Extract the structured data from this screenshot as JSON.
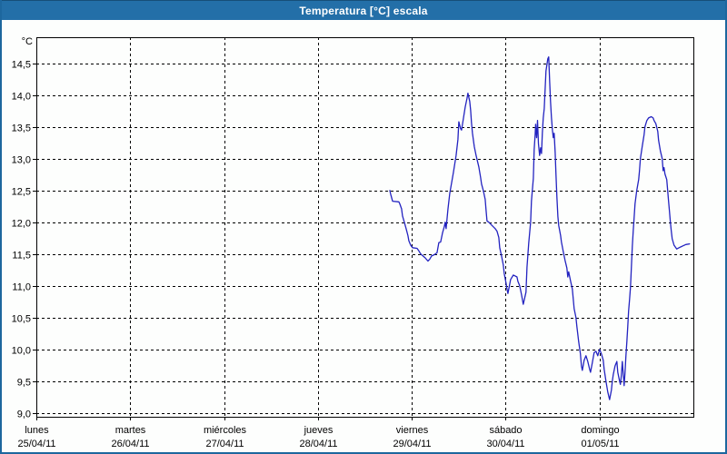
{
  "window": {
    "title": "Temperatura [°C] escala"
  },
  "colors": {
    "titlebar_bg": "#236fa8",
    "window_border": "#1d679e",
    "background": "#fdfefd",
    "line": "#2323c0",
    "grid": "#000000",
    "plot_border": "#000000"
  },
  "chart_data": {
    "type": "line",
    "title": "Temperatura [°C] escala",
    "y_unit_label": "°C",
    "grid": "dashed",
    "legend": "none",
    "ylim": [
      8.94,
      14.91
    ],
    "xlim_days": [
      0,
      7
    ],
    "y_ticks": [
      {
        "v": 14.5,
        "label": "14,5"
      },
      {
        "v": 14.0,
        "label": "14,0"
      },
      {
        "v": 13.5,
        "label": "13,5"
      },
      {
        "v": 13.0,
        "label": "13,0"
      },
      {
        "v": 12.5,
        "label": "12,5"
      },
      {
        "v": 12.0,
        "label": "12,0"
      },
      {
        "v": 11.5,
        "label": "11,5"
      },
      {
        "v": 11.0,
        "label": "11,0"
      },
      {
        "v": 10.5,
        "label": "10,5"
      },
      {
        "v": 10.0,
        "label": "10,0"
      },
      {
        "v": 9.5,
        "label": "9,5"
      },
      {
        "v": 9.0,
        "label": "9,0"
      }
    ],
    "x_ticks": [
      {
        "t": 0,
        "day": "lunes",
        "date": "25/04/11"
      },
      {
        "t": 1,
        "day": "martes",
        "date": "26/04/11"
      },
      {
        "t": 2,
        "day": "miércoles",
        "date": "27/04/11"
      },
      {
        "t": 3,
        "day": "jueves",
        "date": "28/04/11"
      },
      {
        "t": 4,
        "day": "viernes",
        "date": "29/04/11"
      },
      {
        "t": 5,
        "day": "sábado",
        "date": "30/04/11"
      },
      {
        "t": 6,
        "day": "domingo",
        "date": "01/05/11"
      }
    ],
    "series": [
      {
        "name": "Temperatura",
        "color": "#2323c0",
        "points": [
          [
            3.766,
            12.5
          ],
          [
            3.775,
            12.44
          ],
          [
            3.795,
            12.33
          ],
          [
            3.862,
            12.32
          ],
          [
            3.872,
            12.29
          ],
          [
            3.891,
            12.21
          ],
          [
            3.901,
            12.1
          ],
          [
            3.92,
            12.0
          ],
          [
            3.94,
            11.9
          ],
          [
            3.959,
            11.79
          ],
          [
            3.969,
            11.71
          ],
          [
            3.988,
            11.64
          ],
          [
            4.008,
            11.6
          ],
          [
            4.056,
            11.59
          ],
          [
            4.075,
            11.55
          ],
          [
            4.095,
            11.5
          ],
          [
            4.143,
            11.44
          ],
          [
            4.172,
            11.39
          ],
          [
            4.191,
            11.42
          ],
          [
            4.211,
            11.47
          ],
          [
            4.24,
            11.49
          ],
          [
            4.269,
            11.52
          ],
          [
            4.288,
            11.68
          ],
          [
            4.307,
            11.69
          ],
          [
            4.327,
            11.83
          ],
          [
            4.346,
            11.93
          ],
          [
            4.356,
            12.0
          ],
          [
            4.366,
            11.9
          ],
          [
            4.385,
            12.2
          ],
          [
            4.404,
            12.45
          ],
          [
            4.443,
            12.78
          ],
          [
            4.472,
            13.05
          ],
          [
            4.491,
            13.3
          ],
          [
            4.501,
            13.58
          ],
          [
            4.52,
            13.47
          ],
          [
            4.53,
            13.45
          ],
          [
            4.549,
            13.62
          ],
          [
            4.569,
            13.81
          ],
          [
            4.588,
            13.95
          ],
          [
            4.598,
            14.03
          ],
          [
            4.617,
            13.9
          ],
          [
            4.627,
            13.76
          ],
          [
            4.636,
            13.57
          ],
          [
            4.646,
            13.4
          ],
          [
            4.666,
            13.19
          ],
          [
            4.685,
            13.05
          ],
          [
            4.714,
            12.87
          ],
          [
            4.733,
            12.7
          ],
          [
            4.743,
            12.6
          ],
          [
            4.762,
            12.5
          ],
          [
            4.782,
            12.36
          ],
          [
            4.791,
            12.2
          ],
          [
            4.801,
            12.02
          ],
          [
            4.82,
            12.0
          ],
          [
            4.888,
            11.9
          ],
          [
            4.908,
            11.86
          ],
          [
            4.927,
            11.76
          ],
          [
            4.937,
            11.6
          ],
          [
            4.956,
            11.47
          ],
          [
            4.975,
            11.33
          ],
          [
            4.985,
            11.19
          ],
          [
            5.005,
            11.04
          ],
          [
            5.014,
            10.95
          ],
          [
            5.024,
            10.88
          ],
          [
            5.053,
            11.1
          ],
          [
            5.082,
            11.17
          ],
          [
            5.121,
            11.14
          ],
          [
            5.13,
            11.07
          ],
          [
            5.15,
            11.0
          ],
          [
            5.169,
            10.86
          ],
          [
            5.188,
            10.71
          ],
          [
            5.217,
            10.9
          ],
          [
            5.227,
            11.29
          ],
          [
            5.246,
            11.67
          ],
          [
            5.266,
            12.0
          ],
          [
            5.275,
            12.33
          ],
          [
            5.295,
            12.69
          ],
          [
            5.304,
            13.14
          ],
          [
            5.314,
            13.38
          ],
          [
            5.319,
            13.54
          ],
          [
            5.33,
            13.33
          ],
          [
            5.34,
            13.6
          ],
          [
            5.349,
            13.24
          ],
          [
            5.362,
            13.05
          ],
          [
            5.372,
            13.17
          ],
          [
            5.382,
            13.08
          ],
          [
            5.391,
            13.4
          ],
          [
            5.401,
            13.64
          ],
          [
            5.411,
            13.79
          ],
          [
            5.42,
            14.07
          ],
          [
            5.43,
            14.38
          ],
          [
            5.449,
            14.57
          ],
          [
            5.459,
            14.6
          ],
          [
            5.469,
            14.2
          ],
          [
            5.478,
            13.9
          ],
          [
            5.488,
            13.65
          ],
          [
            5.498,
            13.45
          ],
          [
            5.507,
            13.33
          ],
          [
            5.517,
            13.4
          ],
          [
            5.527,
            13.1
          ],
          [
            5.536,
            12.75
          ],
          [
            5.546,
            12.4
          ],
          [
            5.556,
            12.09
          ],
          [
            5.565,
            11.95
          ],
          [
            5.585,
            11.79
          ],
          [
            5.594,
            11.69
          ],
          [
            5.614,
            11.54
          ],
          [
            5.633,
            11.4
          ],
          [
            5.652,
            11.28
          ],
          [
            5.662,
            11.14
          ],
          [
            5.672,
            11.22
          ],
          [
            5.691,
            11.08
          ],
          [
            5.71,
            10.95
          ],
          [
            5.73,
            10.64
          ],
          [
            5.749,
            10.5
          ],
          [
            5.759,
            10.36
          ],
          [
            5.778,
            10.12
          ],
          [
            5.797,
            9.93
          ],
          [
            5.807,
            9.74
          ],
          [
            5.817,
            9.67
          ],
          [
            5.836,
            9.83
          ],
          [
            5.856,
            9.9
          ],
          [
            5.875,
            9.81
          ],
          [
            5.894,
            9.69
          ],
          [
            5.904,
            9.64
          ],
          [
            5.923,
            9.79
          ],
          [
            5.943,
            9.95
          ],
          [
            5.962,
            9.97
          ],
          [
            5.981,
            9.9
          ],
          [
            6.001,
            10.0
          ],
          [
            6.02,
            9.93
          ],
          [
            6.04,
            9.83
          ],
          [
            6.049,
            9.69
          ],
          [
            6.069,
            9.5
          ],
          [
            6.088,
            9.33
          ],
          [
            6.107,
            9.21
          ],
          [
            6.127,
            9.36
          ],
          [
            6.136,
            9.5
          ],
          [
            6.146,
            9.6
          ],
          [
            6.165,
            9.74
          ],
          [
            6.185,
            9.81
          ],
          [
            6.194,
            9.64
          ],
          [
            6.214,
            9.5
          ],
          [
            6.223,
            9.45
          ],
          [
            6.233,
            9.6
          ],
          [
            6.243,
            9.81
          ],
          [
            6.262,
            9.43
          ],
          [
            6.272,
            9.64
          ],
          [
            6.281,
            9.88
          ],
          [
            6.291,
            10.12
          ],
          [
            6.301,
            10.36
          ],
          [
            6.31,
            10.6
          ],
          [
            6.32,
            10.79
          ],
          [
            6.33,
            10.98
          ],
          [
            6.349,
            11.62
          ],
          [
            6.359,
            11.86
          ],
          [
            6.368,
            12.05
          ],
          [
            6.378,
            12.29
          ],
          [
            6.397,
            12.5
          ],
          [
            6.417,
            12.67
          ],
          [
            6.426,
            12.81
          ],
          [
            6.436,
            13.0
          ],
          [
            6.455,
            13.19
          ],
          [
            6.475,
            13.38
          ],
          [
            6.484,
            13.5
          ],
          [
            6.504,
            13.6
          ],
          [
            6.523,
            13.64
          ],
          [
            6.552,
            13.66
          ],
          [
            6.571,
            13.64
          ],
          [
            6.581,
            13.6
          ],
          [
            6.6,
            13.55
          ],
          [
            6.62,
            13.43
          ],
          [
            6.629,
            13.29
          ],
          [
            6.649,
            13.12
          ],
          [
            6.668,
            13.0
          ],
          [
            6.678,
            12.81
          ],
          [
            6.687,
            12.86
          ],
          [
            6.697,
            12.76
          ],
          [
            6.716,
            12.67
          ],
          [
            6.726,
            12.5
          ],
          [
            6.736,
            12.33
          ],
          [
            6.745,
            12.17
          ],
          [
            6.755,
            12.0
          ],
          [
            6.765,
            11.86
          ],
          [
            6.774,
            11.74
          ],
          [
            6.794,
            11.64
          ],
          [
            6.823,
            11.58
          ],
          [
            6.862,
            11.61
          ],
          [
            6.891,
            11.63
          ],
          [
            6.92,
            11.65
          ],
          [
            6.959,
            11.66
          ]
        ]
      }
    ]
  }
}
